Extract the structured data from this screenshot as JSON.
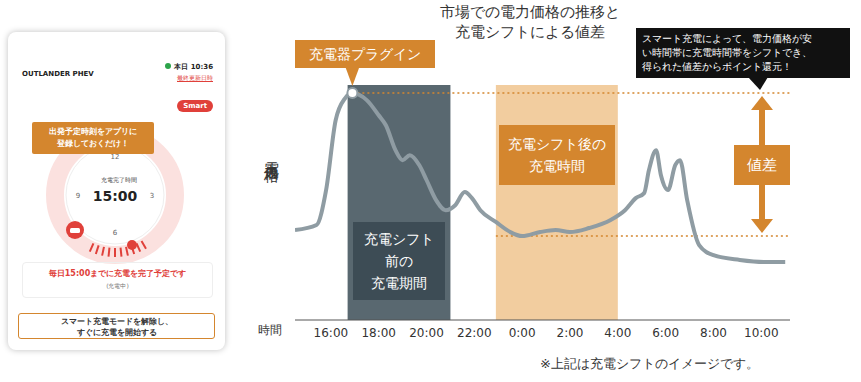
{
  "phone_screen": {
    "vehicle": "OUTLANDER PHEV",
    "today": "本日 10:36",
    "last_updated": "最終更新日時",
    "mode_badge": "Smart",
    "callout": "出発予定時刻をアプリに\n登録しておくだけ！",
    "dial_label": "充電完了時間",
    "dial_time": "15:00",
    "dial_numbers": [
      "12",
      "3",
      "6",
      "9"
    ],
    "status": "毎日15:00までに充電を完了予定です",
    "status_sub": "(充電中)",
    "button": "スマート充電モードを解除し、\nすぐに充電を開始する"
  },
  "chart_data": {
    "type": "line",
    "title": "市場での電力価格の推移と\n充電シフトによる値差",
    "x_label": "時間",
    "y_label": "電力価格",
    "x": [
      14.5,
      15.4,
      15.8,
      16.2,
      16.6,
      16.9,
      17.5,
      18.0,
      18.3,
      18.7,
      19.0,
      19.3,
      19.7,
      20.0,
      20.4,
      20.8,
      21.2,
      21.6,
      21.9,
      22.25,
      22.9,
      23.5,
      24.0,
      24.75,
      25.4,
      26.0,
      26.8,
      27.7,
      28.3,
      28.75,
      29.1,
      29.3,
      29.6,
      29.8,
      30.1,
      30.4,
      30.6,
      30.9,
      31.4,
      32.0,
      33.1,
      34.1,
      35.0
    ],
    "values": [
      2.68,
      2.83,
      3.87,
      5.95,
      6.61,
      6.76,
      6.55,
      6.1,
      5.8,
      5.06,
      4.76,
      4.91,
      4.61,
      4.17,
      3.57,
      3.27,
      3.42,
      3.81,
      3.63,
      3.27,
      2.92,
      2.62,
      2.5,
      2.62,
      2.68,
      2.62,
      2.74,
      2.98,
      3.27,
      3.63,
      3.78,
      4.46,
      5.06,
      4.32,
      3.87,
      4.61,
      4.76,
      3.57,
      2.23,
      1.93,
      1.79,
      1.73,
      1.73
    ],
    "color": "#8f9ca3",
    "xlim": [
      14.5,
      35.2
    ],
    "xticks": [
      {
        "value": 16,
        "label": "16:00"
      },
      {
        "value": 18,
        "label": "18:00"
      },
      {
        "value": 20,
        "label": "20:00"
      },
      {
        "value": 22,
        "label": "22:00"
      },
      {
        "value": 24,
        "label": "0:00"
      },
      {
        "value": 26,
        "label": "2:00"
      },
      {
        "value": 28,
        "label": "4:00"
      },
      {
        "value": 30,
        "label": "6:00"
      },
      {
        "value": 32,
        "label": "8:00"
      },
      {
        "value": 34,
        "label": "10:00"
      }
    ],
    "ylim": [
      0,
      7
    ],
    "yticks": [
      0,
      1,
      2,
      3,
      4,
      5,
      6,
      7
    ],
    "grid": true,
    "tick_labels": "x",
    "annotations": {
      "plug_in": {
        "label": "充電器プラグイン",
        "x": 16.9,
        "y": 6.76
      },
      "before_shift": {
        "label": "充電シフト\n前の\n充電期間",
        "x_start": 16.7,
        "x_end": 21.0,
        "color": "#4b5b64"
      },
      "after_shift": {
        "label": "充電シフト後の\n充電時間",
        "x_start": 22.9,
        "x_end": 28.0,
        "color": "#f2cd9f"
      },
      "price_difference": {
        "label": "値差",
        "high": 6.76,
        "low": 2.5
      },
      "callout": "スマート充電によって、電力価格が安\nい時間帯に充電時間帯をシフトでき、\n得られた値差からポイント還元！",
      "note": "※上記は充電シフトのイメージです。"
    }
  }
}
